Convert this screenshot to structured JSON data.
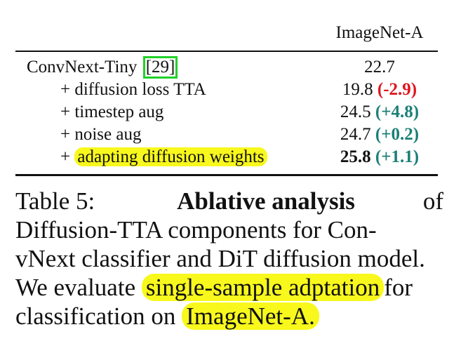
{
  "table": {
    "column_header": "ImageNet-A",
    "rows": [
      {
        "prefix": "ConvNext-Tiny ",
        "label_main": "",
        "citation": "[29]",
        "value": "22.7",
        "delta": ""
      },
      {
        "prefix": "+ ",
        "label_main": "diffusion loss TTA",
        "value": "19.8",
        "delta": "(-2.9)",
        "delta_color": "#e0141e"
      },
      {
        "prefix": "+ ",
        "label_main": "timestep aug",
        "value": "24.5",
        "delta": "(+4.8)",
        "delta_color": "#1b7f77"
      },
      {
        "prefix": "+ ",
        "label_main": "noise aug",
        "value": "24.7",
        "delta": "(+0.2)",
        "delta_color": "#1b7f77"
      },
      {
        "prefix": "+ ",
        "label_main": "adapting diffusion weights",
        "highlighted": true,
        "value": "25.8",
        "value_bold": true,
        "delta": "(+1.1)",
        "delta_color": "#1b7f77"
      }
    ]
  },
  "caption": {
    "label": "Table 5:",
    "bold_title": "Ablative analysis",
    "line1_end": "of",
    "line2": "Diffusion-TTA components for Con-",
    "line3": "vNext classifier and DiT diffusion model.",
    "line4_start": "We evaluate",
    "line4_highlight": "single-sample adptation",
    "line4_end": "for",
    "line5_start": "classification on",
    "line5_highlight": "ImageNet-A."
  },
  "colors": {
    "highlight": "#f8f81d",
    "citation_box": "#21d12a",
    "negative": "#e0141e",
    "positive": "#1b7f77"
  }
}
